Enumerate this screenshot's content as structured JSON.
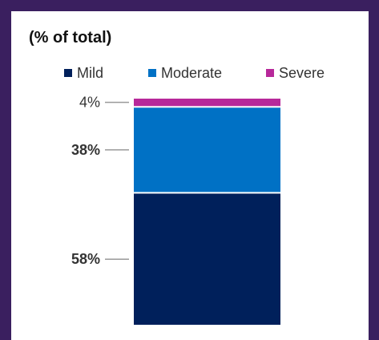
{
  "title": "(% of total)",
  "colors": {
    "mild": "#00205b",
    "moderate": "#0071c5",
    "severe": "#b7289a",
    "leader": "#999999"
  },
  "chart_data": {
    "type": "bar",
    "stacked": true,
    "title": "(% of total)",
    "categories": [
      ""
    ],
    "legend_position": "top",
    "grid": false,
    "series": [
      {
        "name": "Mild",
        "values": [
          58
        ],
        "label": "58%",
        "label_bold": true
      },
      {
        "name": "Moderate",
        "values": [
          38
        ],
        "label": "38%",
        "label_bold": true
      },
      {
        "name": "Severe",
        "values": [
          4
        ],
        "label": "4%",
        "label_bold": false
      }
    ],
    "ylim": [
      0,
      100
    ]
  }
}
